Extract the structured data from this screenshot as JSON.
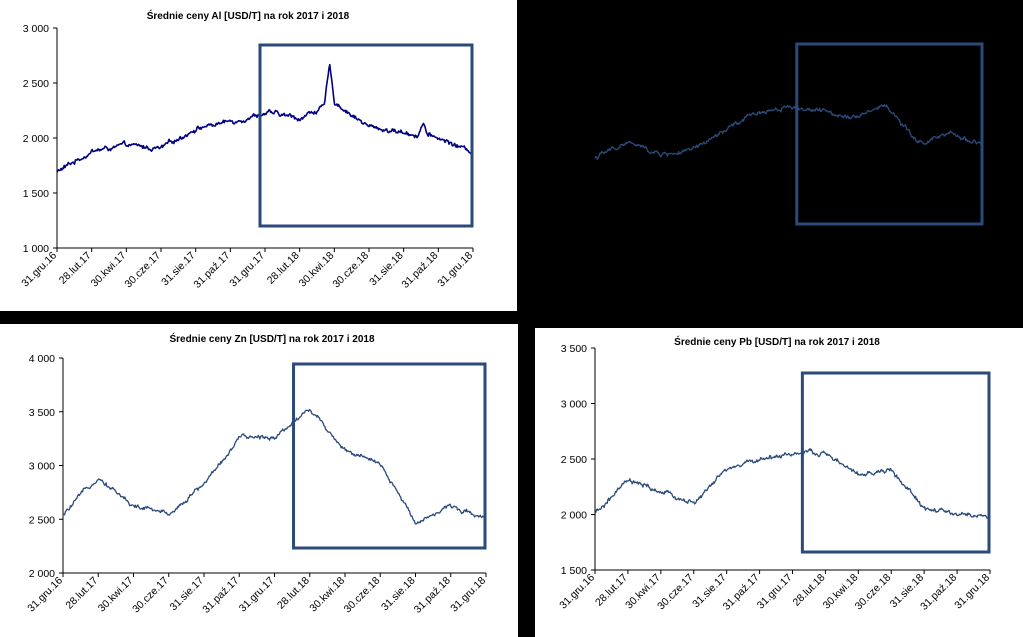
{
  "chart_data": [
    {
      "type": "line",
      "title": "Średnie ceny Al [USD/T] na rok 2017 i 2018",
      "xlabel": "",
      "ylabel": "",
      "ylim": [
        1000,
        3000
      ],
      "yticks": [
        "3 000",
        "2 500",
        "2 000",
        "1 500",
        "1 000"
      ],
      "yvalues": [
        3000,
        2500,
        2000,
        1500,
        1000
      ],
      "xticks": [
        "31.gru.16",
        "28.lut.17",
        "30.kwi.17",
        "30.cze.17",
        "31.sie.17",
        "31.paź.17",
        "31.gru.17",
        "28.lut.18",
        "30.kwi.18",
        "30.cze.18",
        "31.sie.18",
        "31.paź.18",
        "31.gru.18"
      ],
      "highlight": {
        "from": "31.gru.17",
        "to": "31.gru.18"
      },
      "line_color": "#000080",
      "series": [
        {
          "x": [
            "31.gru.16",
            "28.lut.17",
            "30.kwi.17",
            "30.cze.17",
            "31.sie.17",
            "31.paź.17",
            "31.gru.17",
            "28.lut.18",
            "30.kwi.18",
            "30.cze.18",
            "31.sie.18",
            "31.paź.18",
            "31.gru.18"
          ],
          "values": [
            1690,
            1880,
            1930,
            1900,
            2090,
            2150,
            2230,
            2180,
            2330,
            2100,
            2050,
            2000,
            1870
          ]
        }
      ]
    },
    {
      "type": "line",
      "title": "",
      "xlabel": "",
      "ylabel": "",
      "ylim": [
        1000,
        3000
      ],
      "highlight": {
        "from": "31.gru.17",
        "to": "31.gru.18"
      },
      "line_color": "#2a4a7a",
      "series": [
        {
          "x": [
            "31.gru.16",
            "28.lut.17",
            "30.kwi.17",
            "30.cze.17",
            "31.sie.17",
            "31.paź.17",
            "31.gru.17",
            "28.lut.18",
            "30.kwi.18",
            "30.cze.18",
            "31.sie.18",
            "31.paź.18",
            "31.gru.18"
          ],
          "values": [
            1820,
            1960,
            1850,
            1880,
            2060,
            2230,
            2290,
            2240,
            2200,
            2300,
            1950,
            2030,
            1950
          ]
        }
      ]
    },
    {
      "type": "line",
      "title": "Średnie ceny Zn [USD/T] na rok 2017 i 2018",
      "xlabel": "",
      "ylabel": "",
      "ylim": [
        2000,
        4000
      ],
      "yticks": [
        "4 000",
        "3 500",
        "3 000",
        "2 500",
        "2 000"
      ],
      "yvalues": [
        4000,
        3500,
        3000,
        2500,
        2000
      ],
      "xticks": [
        "31.gru.16",
        "28.lut.17",
        "30.kwi.17",
        "30.cze.17",
        "31.sie.17",
        "31.paź.17",
        "31.gru.17",
        "28.lut.18",
        "30.kwi.18",
        "30.cze.18",
        "31.sie.18",
        "31.paź.18",
        "31.gru.18"
      ],
      "highlight": {
        "from": "05.lut.18",
        "to": "31.gru.18"
      },
      "line_color": "#2a4a7a",
      "series": [
        {
          "x": [
            "31.gru.16",
            "28.lut.17",
            "30.kwi.17",
            "30.cze.17",
            "31.sie.17",
            "31.paź.17",
            "31.gru.17",
            "28.lut.18",
            "30.kwi.18",
            "30.cze.18",
            "31.sie.18",
            "31.paź.18",
            "31.gru.18"
          ],
          "values": [
            2530,
            2900,
            2620,
            2550,
            2830,
            3250,
            3270,
            3530,
            3150,
            3000,
            2480,
            2620,
            2520
          ]
        }
      ]
    },
    {
      "type": "line",
      "title": "Średnie ceny Pb [USD/T] na rok 2017 i 2018",
      "xlabel": "",
      "ylabel": "",
      "ylim": [
        1500,
        3500
      ],
      "yticks": [
        "3 500",
        "3 000",
        "2 500",
        "2 000",
        "1 500"
      ],
      "yvalues": [
        3500,
        3000,
        2500,
        2000,
        1500
      ],
      "xticks": [
        "31.gru.16",
        "28.lut.17",
        "30.kwi.17",
        "30.cze.17",
        "31.sie.17",
        "31.paź.17",
        "31.gru.17",
        "28.lut.18",
        "30.kwi.18",
        "30.cze.18",
        "31.sie.18",
        "31.paź.18",
        "31.gru.18"
      ],
      "highlight": {
        "from": "10.sty.18",
        "to": "31.gru.18"
      },
      "line_color": "#2a4a7a",
      "series": [
        {
          "x": [
            "31.gru.16",
            "28.lut.17",
            "30.kwi.17",
            "30.cze.17",
            "31.sie.17",
            "31.paź.17",
            "31.gru.17",
            "28.lut.18",
            "30.kwi.18",
            "30.cze.18",
            "31.sie.18",
            "31.paź.18",
            "31.gru.18"
          ],
          "values": [
            2000,
            2300,
            2200,
            2100,
            2400,
            2500,
            2550,
            2550,
            2350,
            2400,
            2050,
            2000,
            1980
          ]
        }
      ]
    }
  ]
}
